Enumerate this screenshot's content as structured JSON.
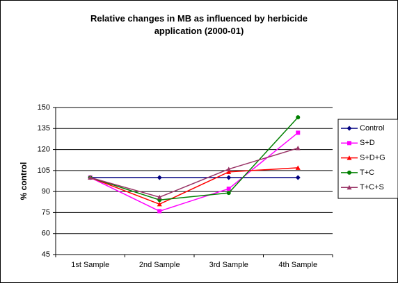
{
  "chart_data": {
    "type": "line",
    "title": "Relative changes in MB as influenced by herbicide application (2000-01)",
    "ylabel": "% control",
    "categories": [
      "1st Sample",
      "2nd Sample",
      "3rd Sample",
      "4th Sample"
    ],
    "series": [
      {
        "name": "Control",
        "color": "#000080",
        "marker": "diamond",
        "values": [
          100,
          100,
          100,
          100
        ]
      },
      {
        "name": "S+D",
        "color": "#ff00ff",
        "marker": "square",
        "values": [
          100,
          76,
          92,
          132
        ]
      },
      {
        "name": "S+D+G",
        "color": "#ff0000",
        "marker": "triangle",
        "values": [
          100,
          81,
          104,
          107
        ]
      },
      {
        "name": "T+C",
        "color": "#008000",
        "marker": "circle",
        "values": [
          100,
          84,
          89,
          143
        ]
      },
      {
        "name": "T+C+S",
        "color": "#993366",
        "marker": "triangle",
        "values": [
          100,
          86,
          106,
          121
        ]
      }
    ],
    "ylim": [
      45,
      150
    ],
    "yticks": [
      45,
      60,
      75,
      90,
      105,
      120,
      135,
      150
    ],
    "grid": true,
    "legend": "right"
  }
}
